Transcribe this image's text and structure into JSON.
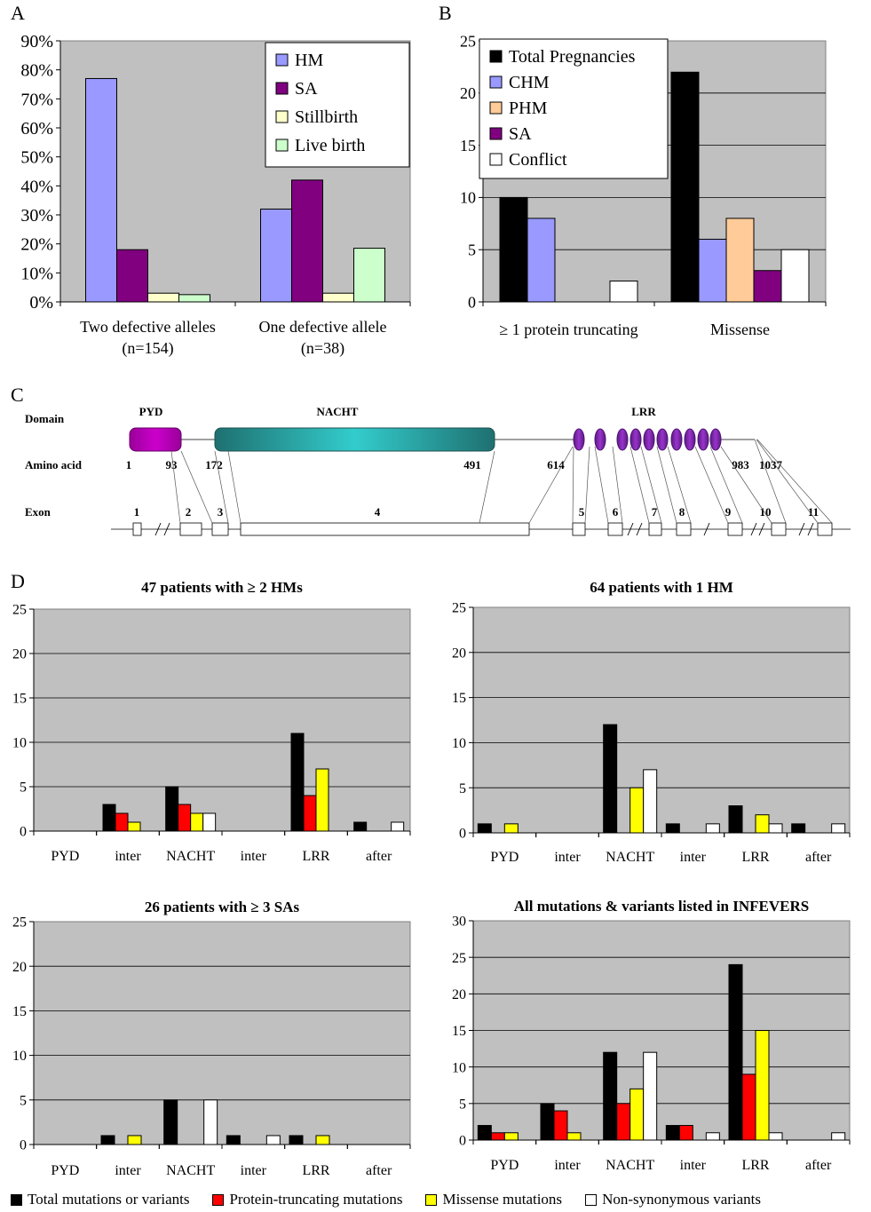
{
  "panels": {
    "a": "A",
    "b": "B",
    "c": "C",
    "d": "D"
  },
  "chart_data": [
    {
      "id": "A",
      "type": "bar",
      "categories": [
        "Two defective alleles\n(n=154)",
        "One defective allele\n(n=38)"
      ],
      "yticks": [
        "0%",
        "10%",
        "20%",
        "30%",
        "40%",
        "50%",
        "60%",
        "70%",
        "80%",
        "90%"
      ],
      "ylim": [
        0,
        90
      ],
      "grid": false,
      "legend_position": "top-right",
      "series": [
        {
          "name": "HM",
          "color": "#9999ff",
          "values": [
            77,
            32
          ]
        },
        {
          "name": "SA",
          "color": "#800080",
          "values": [
            18,
            42
          ]
        },
        {
          "name": "Stillbirth",
          "color": "#ffffcc",
          "values": [
            3,
            3
          ]
        },
        {
          "name": "Live birth",
          "color": "#ccffcc",
          "values": [
            2.5,
            18.5
          ]
        }
      ]
    },
    {
      "id": "B",
      "type": "bar",
      "categories": [
        "≥ 1 protein truncating",
        "Missense"
      ],
      "yticks": [
        "0",
        "5",
        "10",
        "15",
        "20",
        "25"
      ],
      "ylim": [
        0,
        25
      ],
      "grid": true,
      "legend_position": "top-left",
      "series": [
        {
          "name": "Total Pregnancies",
          "color": "#000000",
          "values": [
            10,
            22
          ]
        },
        {
          "name": "CHM",
          "color": "#9999ff",
          "values": [
            8,
            6
          ]
        },
        {
          "name": "PHM",
          "color": "#ffcc99",
          "values": [
            0,
            8
          ]
        },
        {
          "name": "SA",
          "color": "#800080",
          "values": [
            0,
            3
          ]
        },
        {
          "name": "Conflict",
          "color": "#ffffff",
          "values": [
            2,
            5
          ]
        }
      ]
    },
    {
      "id": "D1",
      "type": "bar",
      "title": "47 patients with ≥ 2 HMs",
      "categories": [
        "PYD",
        "inter",
        "NACHT",
        "inter",
        "LRR",
        "after"
      ],
      "yticks": [
        "0",
        "5",
        "10",
        "15",
        "20",
        "25"
      ],
      "ylim": [
        0,
        25
      ],
      "grid": true,
      "series": [
        {
          "color": "#000000",
          "values": [
            0,
            3,
            5,
            0,
            11,
            1
          ]
        },
        {
          "color": "#ff0000",
          "values": [
            0,
            2,
            3,
            0,
            4,
            0
          ]
        },
        {
          "color": "#ffff00",
          "values": [
            0,
            1,
            2,
            0,
            7,
            0
          ]
        },
        {
          "color": "#ffffff",
          "values": [
            0,
            0,
            2,
            0,
            0,
            1
          ]
        }
      ]
    },
    {
      "id": "D2",
      "type": "bar",
      "title": "64 patients with 1 HM",
      "categories": [
        "PYD",
        "inter",
        "NACHT",
        "inter",
        "LRR",
        "after"
      ],
      "yticks": [
        "0",
        "5",
        "10",
        "15",
        "20",
        "25"
      ],
      "ylim": [
        0,
        25
      ],
      "grid": true,
      "series": [
        {
          "color": "#000000",
          "values": [
            1,
            0,
            12,
            1,
            3,
            1
          ]
        },
        {
          "color": "#ff0000",
          "values": [
            0,
            0,
            0,
            0,
            0,
            0
          ]
        },
        {
          "color": "#ffff00",
          "values": [
            1,
            0,
            5,
            0,
            2,
            0
          ]
        },
        {
          "color": "#ffffff",
          "values": [
            0,
            0,
            7,
            1,
            1,
            1
          ]
        }
      ]
    },
    {
      "id": "D3",
      "type": "bar",
      "title": "26 patients with ≥ 3  SAs",
      "categories": [
        "PYD",
        "inter",
        "NACHT",
        "inter",
        "LRR",
        "after"
      ],
      "yticks": [
        "0",
        "5",
        "10",
        "15",
        "20",
        "25"
      ],
      "ylim": [
        0,
        25
      ],
      "grid": true,
      "series": [
        {
          "color": "#000000",
          "values": [
            0,
            1,
            5,
            1,
            1,
            0
          ]
        },
        {
          "color": "#ff0000",
          "values": [
            0,
            0,
            0,
            0,
            0,
            0
          ]
        },
        {
          "color": "#ffff00",
          "values": [
            0,
            1,
            0,
            0,
            1,
            0
          ]
        },
        {
          "color": "#ffffff",
          "values": [
            0,
            0,
            5,
            1,
            0,
            0
          ]
        }
      ]
    },
    {
      "id": "D4",
      "type": "bar",
      "title": "All mutations & variants listed in INFEVERS",
      "categories": [
        "PYD",
        "inter",
        "NACHT",
        "inter",
        "LRR",
        "after"
      ],
      "yticks": [
        "0",
        "5",
        "10",
        "15",
        "20",
        "25",
        "30"
      ],
      "ylim": [
        0,
        30
      ],
      "grid": true,
      "series": [
        {
          "color": "#000000",
          "values": [
            2,
            5,
            12,
            2,
            24,
            0
          ]
        },
        {
          "color": "#ff0000",
          "values": [
            1,
            4,
            5,
            2,
            9,
            0
          ]
        },
        {
          "color": "#ffff00",
          "values": [
            1,
            1,
            7,
            0,
            15,
            0
          ]
        },
        {
          "color": "#ffffff",
          "values": [
            0,
            0,
            12,
            1,
            1,
            1
          ]
        }
      ]
    }
  ],
  "diagram_c": {
    "row_labels": [
      "Domain",
      "Amino acid",
      "Exon"
    ],
    "domains": [
      {
        "label": "PYD",
        "color": "#cc00cc"
      },
      {
        "label": "NACHT",
        "color": "#33cccc"
      },
      {
        "label": "LRR",
        "color": "#9933cc"
      }
    ],
    "amino_acids": [
      "1",
      "93",
      "172",
      "491",
      "614",
      "983",
      "1037"
    ],
    "exons": [
      "1",
      "2",
      "3",
      "4",
      "5",
      "6",
      "7",
      "8",
      "9",
      "10",
      "11"
    ]
  },
  "bottom_legend": [
    {
      "label": "Total mutations or variants",
      "color": "#000000"
    },
    {
      "label": "Protein-truncating mutations",
      "color": "#ff0000"
    },
    {
      "label": "Missense mutations",
      "color": "#ffff00"
    },
    {
      "label": "Non-synonymous variants",
      "color": "#ffffff"
    }
  ]
}
